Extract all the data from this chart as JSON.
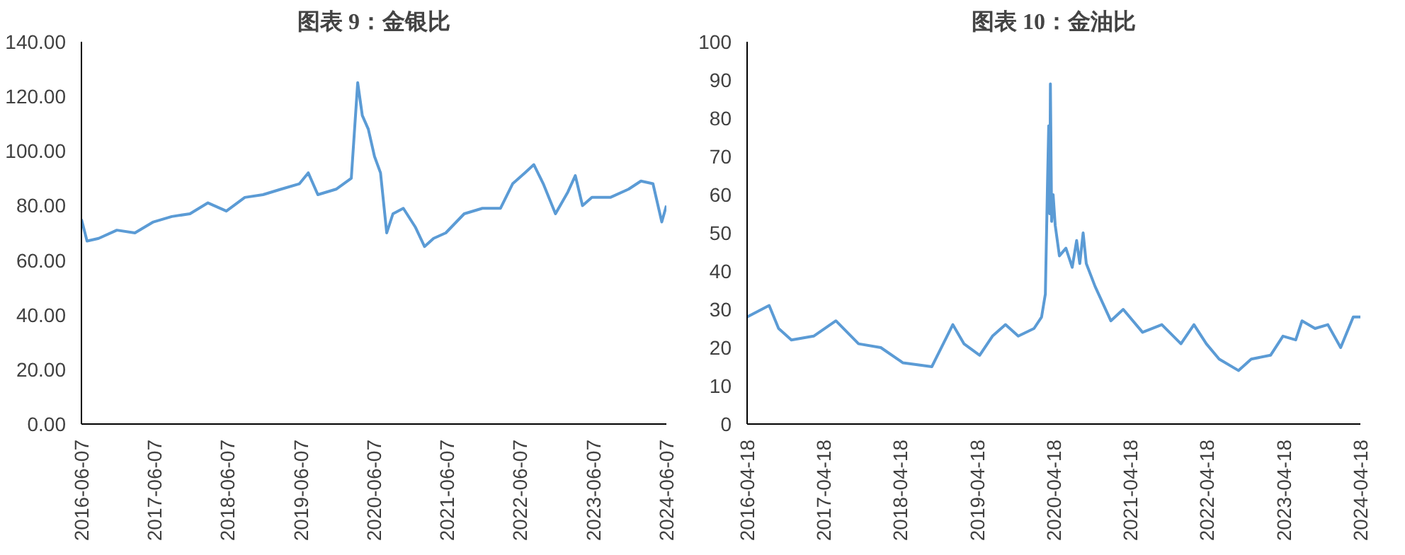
{
  "chart_data": [
    {
      "type": "line",
      "title": "图表 9：金银比",
      "grid": false,
      "line_style": "solid",
      "marker": "none",
      "xlim": [
        "2016-06-07",
        "2024-06-07"
      ],
      "xticks": [
        "2016-06-07",
        "2017-06-07",
        "2018-06-07",
        "2019-06-07",
        "2020-06-07",
        "2021-06-07",
        "2022-06-07",
        "2023-06-07",
        "2024-06-07"
      ],
      "ylim": [
        0,
        140
      ],
      "yticks": [
        {
          "value": 0,
          "label": "0.00"
        },
        {
          "value": 20,
          "label": "20.00"
        },
        {
          "value": 40,
          "label": "40.00"
        },
        {
          "value": 60,
          "label": "60.00"
        },
        {
          "value": 80,
          "label": "80.00"
        },
        {
          "value": 100,
          "label": "100.00"
        },
        {
          "value": 120,
          "label": "120.00"
        },
        {
          "value": 140,
          "label": "140.00"
        }
      ],
      "series": [
        {
          "color": "#5b9bd5",
          "x": [
            "2016-06-07",
            "2016-07-05",
            "2016-09-01",
            "2016-12-01",
            "2017-03-01",
            "2017-06-01",
            "2017-09-01",
            "2017-12-01",
            "2018-03-01",
            "2018-06-01",
            "2018-09-01",
            "2018-12-01",
            "2019-03-01",
            "2019-06-01",
            "2019-07-15",
            "2019-09-01",
            "2019-12-01",
            "2020-02-15",
            "2020-03-18",
            "2020-04-10",
            "2020-05-10",
            "2020-06-10",
            "2020-07-10",
            "2020-08-10",
            "2020-09-10",
            "2020-11-01",
            "2021-01-01",
            "2021-02-15",
            "2021-04-01",
            "2021-06-01",
            "2021-09-01",
            "2021-12-01",
            "2022-03-01",
            "2022-05-01",
            "2022-07-01",
            "2022-08-15",
            "2022-10-01",
            "2022-12-01",
            "2023-02-01",
            "2023-03-10",
            "2023-04-15",
            "2023-06-01",
            "2023-09-01",
            "2023-12-01",
            "2024-02-01",
            "2024-04-01",
            "2024-05-15",
            "2024-06-07"
          ],
          "values": [
            75,
            67,
            68,
            71,
            70,
            74,
            76,
            77,
            81,
            78,
            83,
            84,
            86,
            88,
            92,
            84,
            86,
            90,
            125,
            113,
            108,
            98,
            92,
            70,
            77,
            79,
            72,
            65,
            68,
            70,
            77,
            79,
            79,
            88,
            92,
            95,
            88,
            77,
            85,
            91,
            80,
            83,
            83,
            86,
            89,
            88,
            74,
            80
          ]
        }
      ]
    },
    {
      "type": "line",
      "title": "图表 10：金油比",
      "grid": false,
      "line_style": "solid",
      "marker": "none",
      "xlim": [
        "2016-04-18",
        "2024-04-18"
      ],
      "xticks": [
        "2016-04-18",
        "2017-04-18",
        "2018-04-18",
        "2019-04-18",
        "2020-04-18",
        "2021-04-18",
        "2022-04-18",
        "2023-04-18",
        "2024-04-18"
      ],
      "ylim": [
        0,
        100
      ],
      "yticks": [
        0,
        10,
        20,
        30,
        40,
        50,
        60,
        70,
        80,
        90,
        100
      ],
      "series": [
        {
          "color": "#5b9bd5",
          "x": [
            "2016-04-18",
            "2016-08-01",
            "2016-09-15",
            "2016-11-15",
            "2017-03-01",
            "2017-06-15",
            "2017-10-01",
            "2018-01-15",
            "2018-05-01",
            "2018-09-15",
            "2018-12-24",
            "2019-02-15",
            "2019-05-01",
            "2019-07-01",
            "2019-09-01",
            "2019-11-01",
            "2020-01-15",
            "2020-02-20",
            "2020-03-09",
            "2020-03-20",
            "2020-03-25",
            "2020-03-30",
            "2020-04-02",
            "2020-04-08",
            "2020-04-15",
            "2020-04-25",
            "2020-05-15",
            "2020-06-15",
            "2020-07-15",
            "2020-08-05",
            "2020-08-20",
            "2020-09-05",
            "2020-09-20",
            "2020-11-01",
            "2021-01-15",
            "2021-03-15",
            "2021-06-15",
            "2021-09-15",
            "2021-12-15",
            "2022-02-15",
            "2022-04-15",
            "2022-06-15",
            "2022-09-15",
            "2022-11-15",
            "2023-02-15",
            "2023-04-15",
            "2023-06-15",
            "2023-07-15",
            "2023-09-15",
            "2023-11-15",
            "2024-01-15",
            "2024-03-15",
            "2024-04-18"
          ],
          "values": [
            28,
            31,
            25,
            22,
            23,
            27,
            21,
            20,
            16,
            15,
            26,
            21,
            18,
            23,
            26,
            23,
            25,
            28,
            34,
            65,
            78,
            55,
            89,
            53,
            60,
            52,
            44,
            46,
            41,
            48,
            42,
            50,
            42,
            36,
            27,
            30,
            24,
            26,
            21,
            26,
            21,
            17,
            14,
            17,
            18,
            23,
            22,
            27,
            25,
            26,
            20,
            28,
            28
          ]
        }
      ]
    }
  ]
}
